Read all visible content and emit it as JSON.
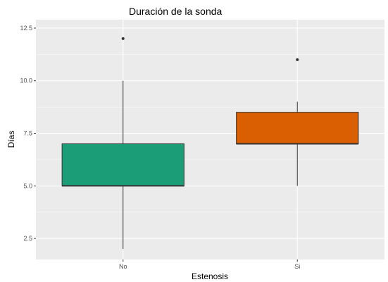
{
  "chart_data": {
    "type": "boxplot",
    "title": "Duración de la sonda",
    "xlabel": "Estenosis",
    "ylabel": "Días",
    "categories": [
      "No",
      "Si"
    ],
    "ylim": [
      1.5,
      12.9
    ],
    "yticks": [
      2.5,
      5.0,
      7.5,
      10.0,
      12.5
    ],
    "ytick_labels": [
      "2.5",
      "5.0",
      "7.5",
      "10.0",
      "12.5"
    ],
    "grid": true,
    "legend": "none",
    "boxes": [
      {
        "category": "No",
        "whisker_low": 2.0,
        "q1": 5.0,
        "median": 5.0,
        "q3": 7.0,
        "whisker_high": 10.0,
        "outliers": [
          12.0
        ],
        "color": "#1b9e77"
      },
      {
        "category": "Si",
        "whisker_low": 5.0,
        "q1": 7.0,
        "median": 7.0,
        "q3": 8.5,
        "whisker_high": 9.0,
        "outliers": [
          11.0
        ],
        "color": "#d95f02"
      }
    ],
    "colors": {
      "panel": "#ebebeb",
      "grid": "#ffffff",
      "outline": "#333333"
    }
  }
}
